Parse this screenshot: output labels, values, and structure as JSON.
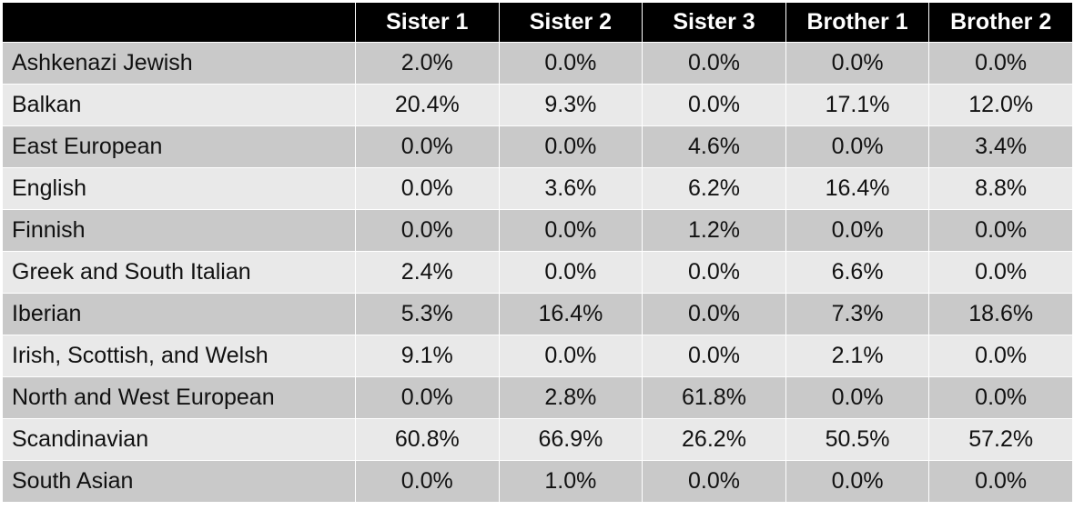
{
  "chart_data": {
    "type": "table",
    "columns": [
      "Sister 1",
      "Sister 2",
      "Sister 3",
      "Brother 1",
      "Brother 2"
    ],
    "rows": [
      {
        "label": "Ashkenazi Jewish",
        "values": [
          "2.0%",
          "0.0%",
          "0.0%",
          "0.0%",
          "0.0%"
        ]
      },
      {
        "label": "Balkan",
        "values": [
          "20.4%",
          "9.3%",
          "0.0%",
          "17.1%",
          "12.0%"
        ]
      },
      {
        "label": "East European",
        "values": [
          "0.0%",
          "0.0%",
          "4.6%",
          "0.0%",
          "3.4%"
        ]
      },
      {
        "label": "English",
        "values": [
          "0.0%",
          "3.6%",
          "6.2%",
          "16.4%",
          "8.8%"
        ]
      },
      {
        "label": "Finnish",
        "values": [
          "0.0%",
          "0.0%",
          "1.2%",
          "0.0%",
          "0.0%"
        ]
      },
      {
        "label": "Greek and South Italian",
        "values": [
          "2.4%",
          "0.0%",
          "0.0%",
          "6.6%",
          "0.0%"
        ]
      },
      {
        "label": "Iberian",
        "values": [
          "5.3%",
          "16.4%",
          "0.0%",
          "7.3%",
          "18.6%"
        ]
      },
      {
        "label": "Irish, Scottish, and Welsh",
        "values": [
          "9.1%",
          "0.0%",
          "0.0%",
          "2.1%",
          "0.0%"
        ]
      },
      {
        "label": "North and West European",
        "values": [
          "0.0%",
          "2.8%",
          "61.8%",
          "0.0%",
          "0.0%"
        ]
      },
      {
        "label": "Scandinavian",
        "values": [
          "60.8%",
          "66.9%",
          "26.2%",
          "50.5%",
          "57.2%"
        ]
      },
      {
        "label": "South Asian",
        "values": [
          "0.0%",
          "1.0%",
          "0.0%",
          "0.0%",
          "0.0%"
        ]
      }
    ]
  },
  "colors": {
    "header_bg": "#000000",
    "header_text": "#ffffff",
    "row_dark": "#c9c9c9",
    "row_light": "#e9e9e9"
  }
}
